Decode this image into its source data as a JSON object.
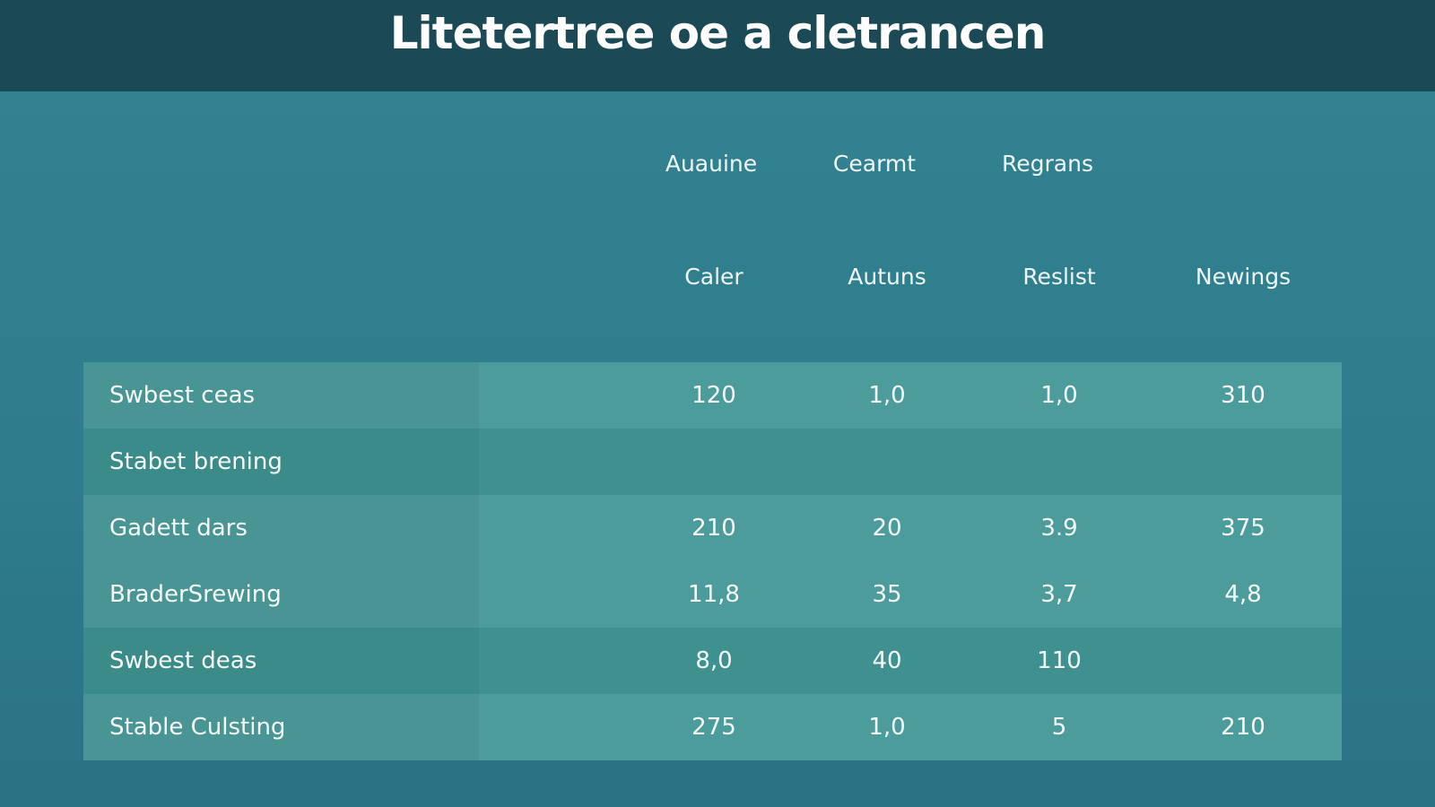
{
  "header": {
    "title": "Litetertree oe a cletrancen"
  },
  "table": {
    "group_headers": [
      "Auauine",
      "Cearmt",
      "Regrans"
    ],
    "columns": [
      "Caler",
      "Autuns",
      "Reslist",
      "Newings"
    ],
    "rows": [
      {
        "label": "Swbest ceas",
        "cells": [
          "120",
          "1,0",
          "1,0",
          "310"
        ]
      },
      {
        "label": "Stabet brening",
        "cells": [
          null,
          null,
          null,
          null
        ]
      },
      {
        "label": "Gadett dars",
        "cells": [
          "210",
          "20",
          "3.9",
          "375"
        ]
      },
      {
        "label": "BraderSrewing",
        "cells": [
          "11,8",
          "35",
          "3,7",
          "4,8"
        ]
      },
      {
        "label": "Swbest deas",
        "cells": [
          "8,0",
          "40",
          "110",
          null
        ]
      },
      {
        "label": "Stable Culsting",
        "cells": [
          "275",
          "1,0",
          "5",
          "210"
        ]
      }
    ]
  }
}
